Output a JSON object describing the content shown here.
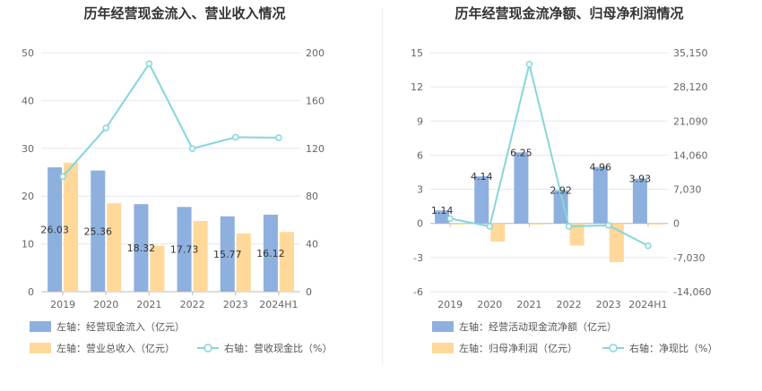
{
  "colors": {
    "bar_blue": "#8EB0DE",
    "bar_orange": "#FFD89A",
    "line_cyan": "#86D6DA",
    "grid": "#E6E6F0",
    "axis_text": "#666666",
    "title_text": "#333333"
  },
  "chart_data": [
    {
      "type": "bar",
      "title": "历年经营现金流入、营业收入情况",
      "categories": [
        "2019",
        "2020",
        "2021",
        "2022",
        "2023",
        "2024H1"
      ],
      "left_axis": {
        "ticks": [
          "0",
          "10",
          "20",
          "30",
          "40",
          "50"
        ],
        "ylim": [
          0,
          50
        ]
      },
      "right_axis": {
        "ticks": [
          "0",
          "40",
          "80",
          "120",
          "160",
          "200"
        ],
        "ylim": [
          0,
          200
        ]
      },
      "series": [
        {
          "name": "左轴：经营现金流入（亿元）",
          "kind": "bar",
          "axis": "left",
          "values": [
            26.03,
            25.36,
            18.32,
            17.73,
            15.77,
            16.12
          ],
          "labels": [
            "26.03",
            "25.36",
            "18.32",
            "17.73",
            "15.77",
            "16.12"
          ]
        },
        {
          "name": "左轴：营业总收入（亿元）",
          "kind": "bar",
          "axis": "left",
          "values": [
            27.0,
            18.5,
            9.6,
            14.8,
            12.2,
            12.5
          ]
        },
        {
          "name": "右轴：营收现金比（%）",
          "kind": "line",
          "axis": "right",
          "values": [
            96.4,
            137.1,
            190.8,
            119.8,
            129.3,
            128.9
          ]
        }
      ]
    },
    {
      "type": "bar",
      "title": "历年经营现金流净额、归母净利润情况",
      "categories": [
        "2019",
        "2020",
        "2021",
        "2022",
        "2023",
        "2024H1"
      ],
      "left_axis": {
        "ticks": [
          "-6",
          "-3",
          "0",
          "3",
          "6",
          "9",
          "12",
          "15"
        ],
        "ylim": [
          -6,
          15
        ]
      },
      "right_axis": {
        "ticks": [
          "-14,060",
          "-7,030",
          "0",
          "7,030",
          "14,060",
          "21,090",
          "28,120",
          "35,150"
        ],
        "ylim": [
          -14060,
          35150
        ]
      },
      "series": [
        {
          "name": "左轴：经营活动现金流净额（亿元）",
          "kind": "bar",
          "axis": "left",
          "values": [
            1.14,
            4.14,
            6.25,
            2.92,
            4.96,
            3.93
          ],
          "labels": [
            "1.14",
            "4.14",
            "6.25",
            "2.92",
            "4.96",
            "3.93"
          ]
        },
        {
          "name": "左轴：归母净利润（亿元）",
          "kind": "bar",
          "axis": "left",
          "values": [
            -0.1,
            -1.6,
            -0.1,
            -1.95,
            -3.4,
            -0.1
          ]
        },
        {
          "name": "右轴：净现比（%）",
          "kind": "line",
          "axis": "right",
          "values": [
            1000,
            -600,
            32800,
            -600,
            -400,
            -4600
          ]
        }
      ]
    }
  ]
}
